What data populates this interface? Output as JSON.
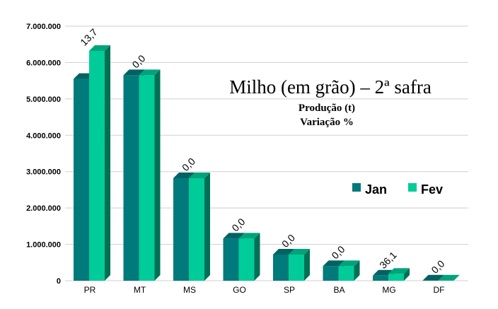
{
  "chart_data": {
    "type": "bar",
    "title": "Milho (em grão) – 2ª safra",
    "subtitle_lines": [
      "Produção (t)",
      "Variação %"
    ],
    "categories": [
      "PR",
      "MT",
      "MS",
      "GO",
      "SP",
      "BA",
      "MG",
      "DF"
    ],
    "series": [
      {
        "name": "Jan",
        "values": [
          5550000,
          5650000,
          2820000,
          1160000,
          720000,
          400000,
          140000,
          5000
        ]
      },
      {
        "name": "Fev",
        "values": [
          6320000,
          5650000,
          2820000,
          1160000,
          720000,
          400000,
          190000,
          5000
        ]
      }
    ],
    "data_labels": [
      "13,7",
      "0,0",
      "0,0",
      "0,0",
      "0,0",
      "0,0",
      "36,1",
      "0,0"
    ],
    "ylim": [
      0,
      7000000
    ],
    "yticks": [
      0,
      1000000,
      2000000,
      3000000,
      4000000,
      5000000,
      6000000,
      7000000
    ],
    "ytick_labels": [
      "0",
      "1.000.000",
      "2.000.000",
      "3.000.000",
      "4.000.000",
      "5.000.000",
      "6.000.000",
      "7.000.000"
    ],
    "grid": true,
    "legend_placement": "right",
    "colors": {
      "Jan": "#007a7a",
      "Fev": "#00cc99"
    }
  }
}
